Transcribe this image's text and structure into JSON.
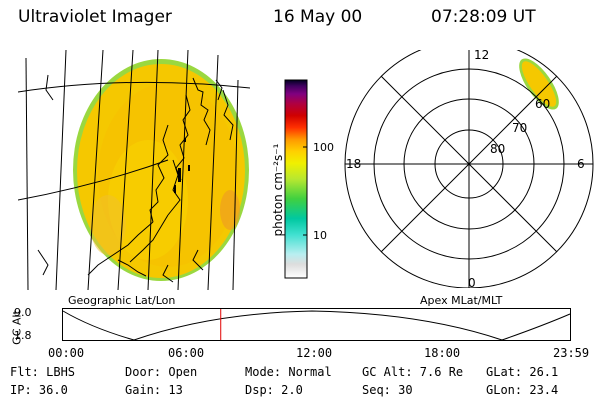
{
  "header": {
    "title": "Ultraviolet Imager",
    "date": "16 May 00",
    "time": "07:28:09 UT"
  },
  "colorbar": {
    "unit_label": "photon cm⁻²s⁻¹",
    "tick_100": "100",
    "tick_10": "10",
    "colors": [
      "#ffffff",
      "#dddddd",
      "#b8eef0",
      "#40e0d0",
      "#00c8a0",
      "#40d040",
      "#b8e830",
      "#f0f000",
      "#ffd000",
      "#ff9900",
      "#ff3000",
      "#d00000",
      "#b00040",
      "#800080",
      "#400060",
      "#000020"
    ]
  },
  "polar_plot": {
    "mlt_top": "12",
    "mlt_left": "18",
    "mlt_right": "6",
    "mlt_bottom": "0",
    "lat_60": "60",
    "lat_70": "70",
    "lat_80": "80"
  },
  "labels": {
    "geo": "Geographic Lat/Lon",
    "apex": "Apex MLat/MLT"
  },
  "timeline": {
    "axis_label": "GC Alt",
    "y_max": "9.0",
    "y_min": "1.8",
    "ticks": [
      "00:00",
      "06:00",
      "12:00",
      "18:00",
      "23:59"
    ],
    "marker_time": "07:28",
    "marker_color": "#e00000"
  },
  "status": {
    "row1": {
      "flt": "Flt: LBHS",
      "door": "Door: Open",
      "mode": "Mode: Normal",
      "gcalt": "GC Alt: 7.6 Re",
      "glat": "GLat:  26.1"
    },
    "row2": {
      "ip": "IP: 36.0",
      "gain": "Gain: 13",
      "dsp": "Dsp:     2.0",
      "seq": "Seq: 30",
      "glon": "GLon:  23.4"
    }
  }
}
